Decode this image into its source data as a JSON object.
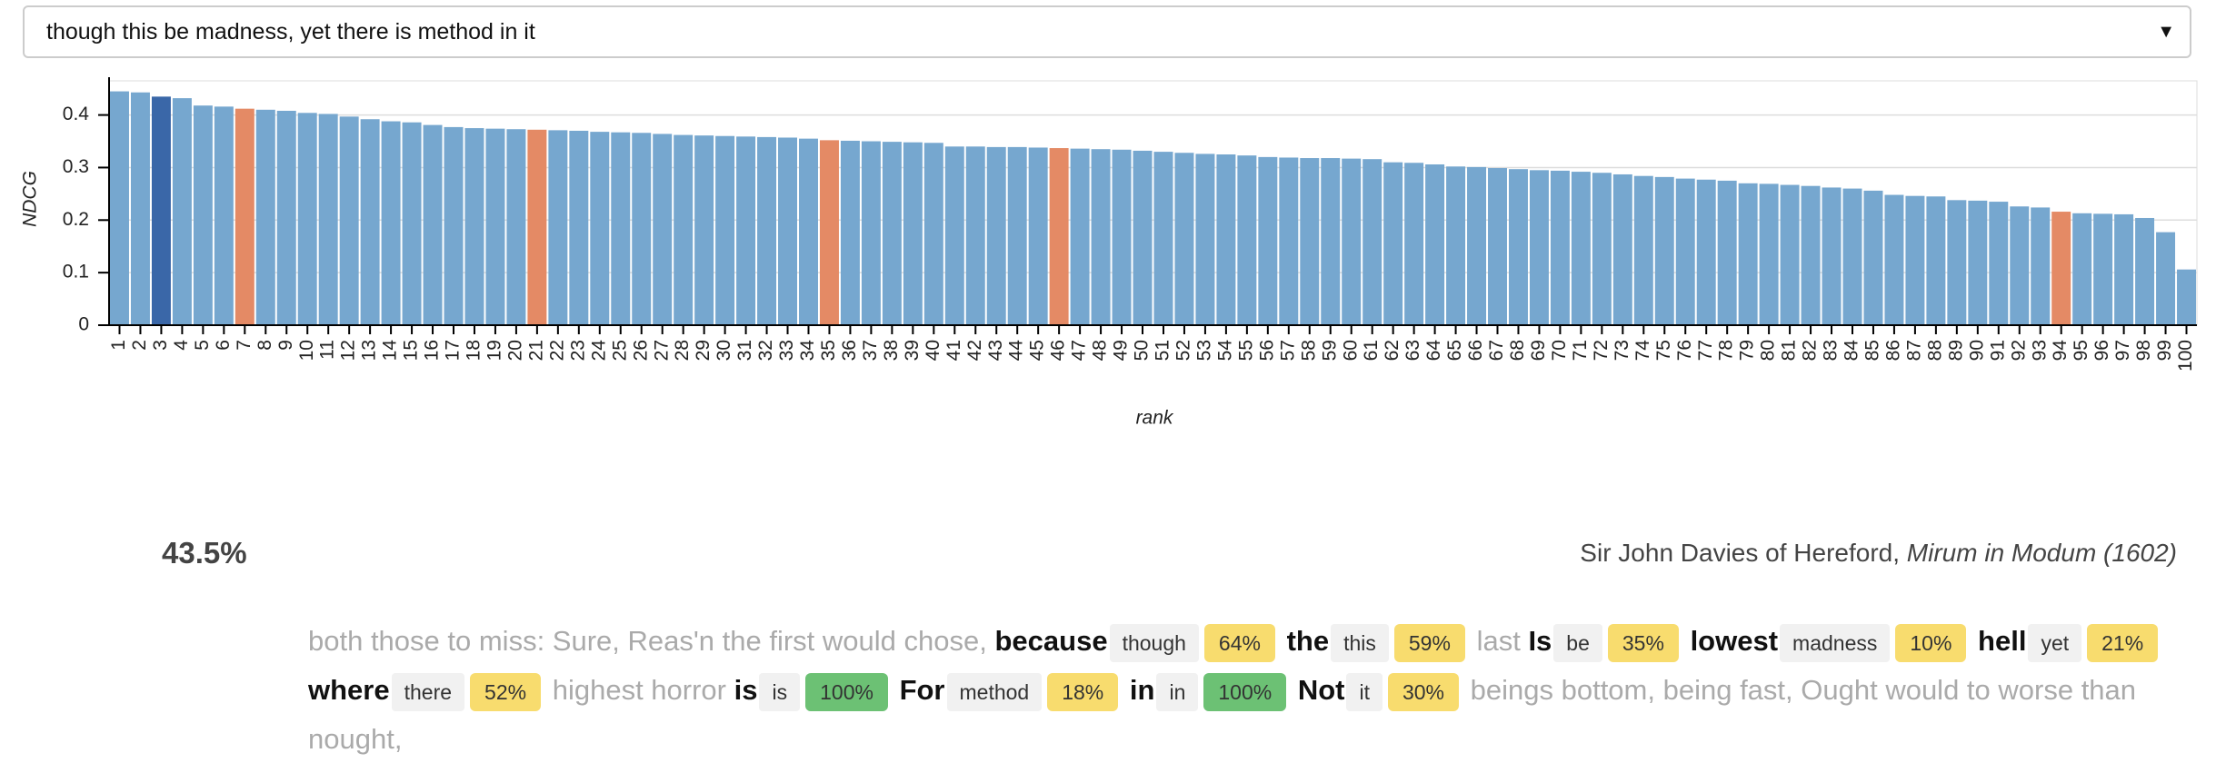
{
  "dropdown": {
    "value": "though this be madness, yet there is method in it"
  },
  "chart_data": {
    "type": "bar",
    "xlabel": "rank",
    "ylabel": "NDCG",
    "categories": [
      1,
      2,
      3,
      4,
      5,
      6,
      7,
      8,
      9,
      10,
      11,
      12,
      13,
      14,
      15,
      16,
      17,
      18,
      19,
      20,
      21,
      22,
      23,
      24,
      25,
      26,
      27,
      28,
      29,
      30,
      31,
      32,
      33,
      34,
      35,
      36,
      37,
      38,
      39,
      40,
      41,
      42,
      43,
      44,
      45,
      46,
      47,
      48,
      49,
      50,
      51,
      52,
      53,
      54,
      55,
      56,
      57,
      58,
      59,
      60,
      61,
      62,
      63,
      64,
      65,
      66,
      67,
      68,
      69,
      70,
      71,
      72,
      73,
      74,
      75,
      76,
      77,
      78,
      79,
      80,
      81,
      82,
      83,
      84,
      85,
      86,
      87,
      88,
      89,
      90,
      91,
      92,
      93,
      94,
      95,
      96,
      97,
      98,
      99,
      100
    ],
    "values": [
      0.445,
      0.443,
      0.435,
      0.432,
      0.418,
      0.416,
      0.412,
      0.41,
      0.408,
      0.404,
      0.402,
      0.397,
      0.392,
      0.388,
      0.386,
      0.381,
      0.377,
      0.375,
      0.374,
      0.373,
      0.372,
      0.371,
      0.37,
      0.368,
      0.367,
      0.366,
      0.364,
      0.362,
      0.361,
      0.36,
      0.359,
      0.358,
      0.357,
      0.355,
      0.352,
      0.351,
      0.35,
      0.349,
      0.348,
      0.347,
      0.34,
      0.34,
      0.339,
      0.339,
      0.338,
      0.337,
      0.336,
      0.335,
      0.334,
      0.332,
      0.33,
      0.328,
      0.326,
      0.325,
      0.323,
      0.32,
      0.319,
      0.318,
      0.318,
      0.317,
      0.316,
      0.31,
      0.309,
      0.306,
      0.302,
      0.301,
      0.299,
      0.297,
      0.295,
      0.294,
      0.292,
      0.29,
      0.287,
      0.284,
      0.282,
      0.279,
      0.277,
      0.275,
      0.27,
      0.269,
      0.267,
      0.265,
      0.262,
      0.26,
      0.256,
      0.248,
      0.246,
      0.245,
      0.238,
      0.237,
      0.235,
      0.226,
      0.224,
      0.216,
      0.213,
      0.212,
      0.211,
      0.204,
      0.177,
      0.106
    ],
    "color": "#76a7cf",
    "highlight": {
      "color": "#e48a65",
      "categories": [
        7,
        21,
        35,
        46,
        94
      ]
    },
    "selected": {
      "color": "#3a67a8",
      "category": 3
    },
    "ylim": [
      0,
      0.465
    ],
    "yticks": [
      0,
      0.1,
      0.2,
      0.3,
      0.4
    ],
    "grid": true
  },
  "result": {
    "score": "43.5%",
    "author": "Sir John Davies of Hereford,",
    "work": "Mirum in Modum (1602)",
    "passage": [
      {
        "text": "both those to miss: Sure, Reas'n the first would chose,"
      },
      {
        "word": "because",
        "match": "though",
        "score": "64%",
        "color": "#f8dc6e"
      },
      {
        "word": "the",
        "match": "this",
        "score": "59%",
        "color": "#f8dc6e"
      },
      {
        "text": "last"
      },
      {
        "word": "Is",
        "match": "be",
        "score": "35%",
        "color": "#f8dc6e"
      },
      {
        "word": "lowest",
        "match": "madness",
        "score": "10%",
        "color": "#f8dc6e"
      },
      {
        "word": "hell",
        "match": "yet",
        "score": "21%",
        "color": "#f8dc6e"
      },
      {
        "word": "where",
        "match": "there",
        "score": "52%",
        "color": "#f8dc6e"
      },
      {
        "text": "highest horror"
      },
      {
        "word": "is",
        "match": "is",
        "score": "100%",
        "color": "#6cc174"
      },
      {
        "word": "For",
        "match": "method",
        "score": "18%",
        "color": "#f8dc6e"
      },
      {
        "word": "in",
        "match": "in",
        "score": "100%",
        "color": "#6cc174"
      },
      {
        "word": "Not",
        "match": "it",
        "score": "30%",
        "color": "#f8dc6e"
      },
      {
        "text": "beings bottom, being fast, Ought would to worse than nought,"
      }
    ]
  }
}
